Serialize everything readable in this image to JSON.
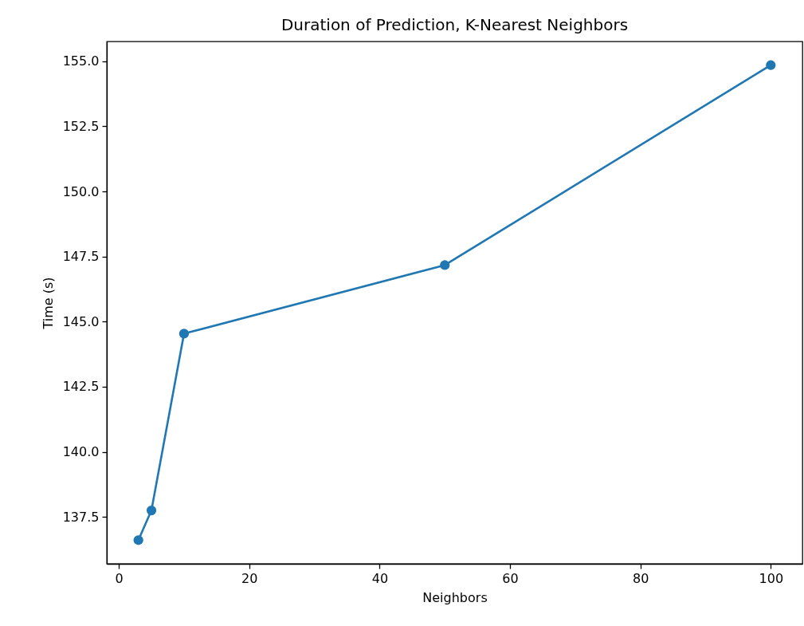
{
  "chart_data": {
    "type": "line",
    "title": "Duration of Prediction, K-Nearest Neighbors",
    "xlabel": "Neighbors",
    "ylabel": "Time (s)",
    "x": [
      3,
      5,
      10,
      50,
      100
    ],
    "series": [
      {
        "color": "#1f77b4",
        "values": [
          136.61,
          137.75,
          144.54,
          147.17,
          154.85
        ]
      }
    ],
    "xlim": [
      -1.85,
      104.85
    ],
    "xticks": [
      0,
      20,
      40,
      60,
      80,
      100
    ],
    "ylim": [
      135.7,
      155.76
    ],
    "yticks": [
      137.5,
      {
        "value": 140,
        "label": "140.0"
      },
      142.5,
      {
        "value": 145,
        "label": "145.0"
      },
      147.5,
      {
        "value": 150,
        "label": "150.0"
      },
      152.5,
      {
        "value": 155,
        "label": "155.0"
      }
    ],
    "marker": "circle",
    "line_style": "solid",
    "grid": false
  }
}
